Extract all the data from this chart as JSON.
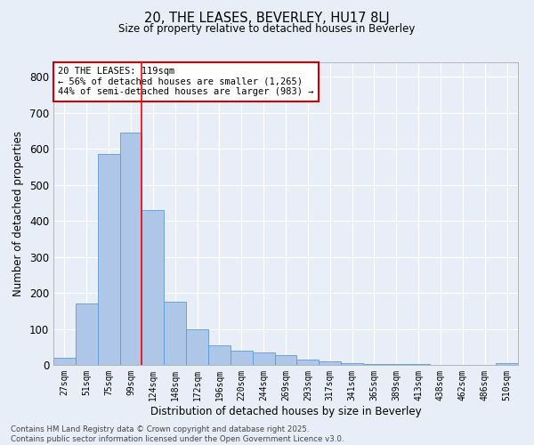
{
  "title1": "20, THE LEASES, BEVERLEY, HU17 8LJ",
  "title2": "Size of property relative to detached houses in Beverley",
  "xlabel": "Distribution of detached houses by size in Beverley",
  "ylabel": "Number of detached properties",
  "categories": [
    "27sqm",
    "51sqm",
    "75sqm",
    "99sqm",
    "124sqm",
    "148sqm",
    "172sqm",
    "196sqm",
    "220sqm",
    "244sqm",
    "269sqm",
    "293sqm",
    "317sqm",
    "341sqm",
    "365sqm",
    "389sqm",
    "413sqm",
    "438sqm",
    "462sqm",
    "486sqm",
    "510sqm"
  ],
  "values": [
    20,
    170,
    585,
    645,
    430,
    175,
    100,
    55,
    40,
    35,
    28,
    15,
    10,
    5,
    3,
    2,
    2,
    1,
    1,
    1,
    6
  ],
  "bar_color": "#aec6e8",
  "bar_edgecolor": "#5b9bd5",
  "bg_color": "#e8eef7",
  "grid_color": "#ffffff",
  "redline_index": 4,
  "annotation_text": "20 THE LEASES: 119sqm\n← 56% of detached houses are smaller (1,265)\n44% of semi-detached houses are larger (983) →",
  "annotation_box_facecolor": "#ffffff",
  "annotation_box_edgecolor": "#cc0000",
  "footer1": "Contains HM Land Registry data © Crown copyright and database right 2025.",
  "footer2": "Contains public sector information licensed under the Open Government Licence v3.0.",
  "ylim": [
    0,
    840
  ],
  "yticks": [
    0,
    100,
    200,
    300,
    400,
    500,
    600,
    700,
    800
  ]
}
